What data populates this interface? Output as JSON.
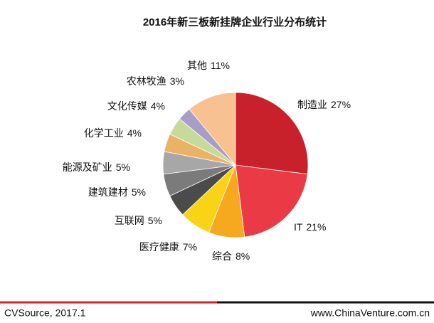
{
  "chart_data": {
    "type": "pie",
    "title": "2016年新三板新挂牌企业行业分布统计",
    "categories": [
      "制造业",
      "IT",
      "综合",
      "医疗健康",
      "互联网",
      "建筑建材",
      "能源及矿业",
      "化学工业",
      "文化传媒",
      "农林牧渔",
      "其他"
    ],
    "values": [
      27,
      21,
      8,
      7,
      5,
      5,
      5,
      4,
      4,
      3,
      11
    ],
    "value_labels": [
      "27%",
      "21%",
      "8%",
      "7%",
      "5%",
      "5%",
      "5%",
      "4%",
      "4%",
      "3%",
      "11%"
    ],
    "colors": [
      "#c9212b",
      "#ea3a45",
      "#f6a81e",
      "#f8d316",
      "#4b4b4b",
      "#7b7b7b",
      "#a7a7a7",
      "#e9b265",
      "#c7da9c",
      "#a79dc6",
      "#f8c191"
    ]
  },
  "footer": {
    "source": "CVSource, 2017.1",
    "website": "www.ChinaVenture.com.cn"
  }
}
